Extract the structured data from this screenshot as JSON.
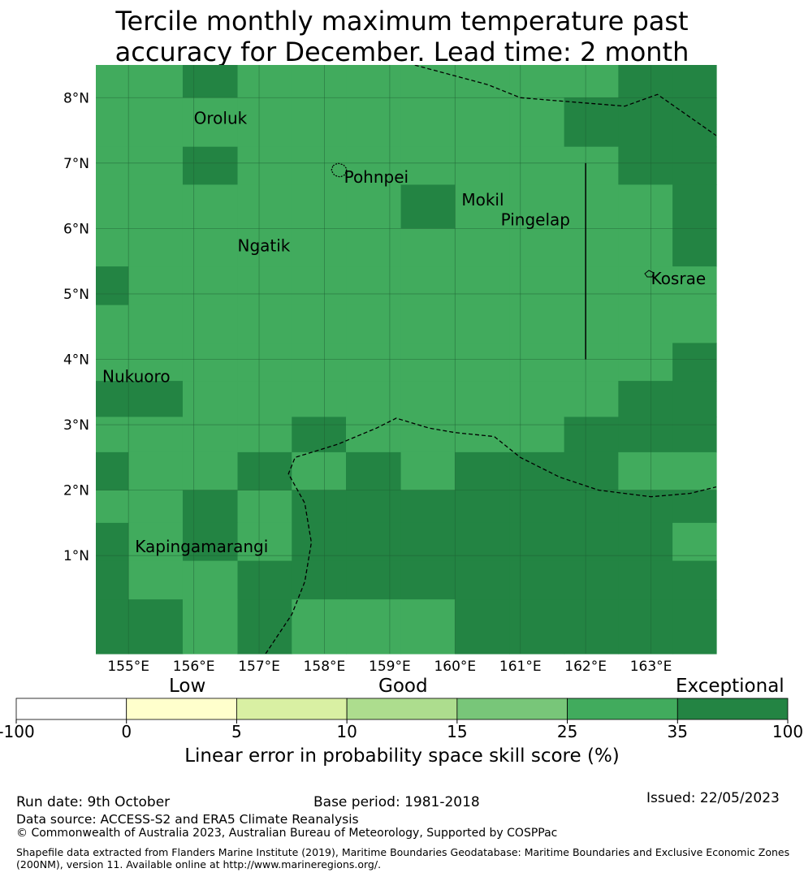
{
  "title": {
    "line1": "Tercile monthly maximum temperature past",
    "line2": "accuracy for December. Lead time: 2 month"
  },
  "map": {
    "lon_range": [
      154.5,
      164.0
    ],
    "lat_range": [
      -0.5,
      8.5
    ],
    "lon_ticks": [
      {
        "value": 155,
        "label": "155°E"
      },
      {
        "value": 156,
        "label": "156°E"
      },
      {
        "value": 157,
        "label": "157°E"
      },
      {
        "value": 158,
        "label": "158°E"
      },
      {
        "value": 159,
        "label": "159°E"
      },
      {
        "value": 160,
        "label": "160°E"
      },
      {
        "value": 161,
        "label": "161°E"
      },
      {
        "value": 162,
        "label": "162°E"
      },
      {
        "value": 163,
        "label": "163°E"
      }
    ],
    "lat_ticks": [
      {
        "value": 1,
        "label": "1°N"
      },
      {
        "value": 2,
        "label": "2°N"
      },
      {
        "value": 3,
        "label": "3°N"
      },
      {
        "value": 4,
        "label": "4°N"
      },
      {
        "value": 5,
        "label": "5°N"
      },
      {
        "value": 6,
        "label": "6°N"
      },
      {
        "value": 7,
        "label": "7°N"
      },
      {
        "value": 8,
        "label": "8°N"
      }
    ],
    "grid_lon_edges": [
      154.5,
      155.0,
      155.83,
      156.67,
      157.5,
      158.33,
      159.17,
      160.0,
      160.83,
      161.67,
      162.5,
      163.33,
      164.0
    ],
    "grid_lat_edges": [
      8.5,
      8.0,
      7.25,
      6.67,
      6.0,
      5.42,
      4.83,
      4.25,
      3.67,
      3.12,
      2.58,
      2.0,
      1.5,
      0.92,
      0.33,
      -0.5
    ],
    "grid_classes": [
      [
        5,
        5,
        6,
        5,
        5,
        5,
        5,
        5,
        5,
        5,
        6,
        6
      ],
      [
        5,
        5,
        5,
        5,
        5,
        5,
        5,
        5,
        5,
        6,
        6,
        6
      ],
      [
        5,
        5,
        6,
        5,
        5,
        5,
        5,
        5,
        5,
        5,
        6,
        6
      ],
      [
        5,
        5,
        5,
        5,
        5,
        5,
        6,
        5,
        5,
        5,
        5,
        6
      ],
      [
        5,
        5,
        5,
        5,
        5,
        5,
        5,
        5,
        5,
        5,
        5,
        6
      ],
      [
        6,
        5,
        5,
        5,
        5,
        5,
        5,
        5,
        5,
        5,
        5,
        5
      ],
      [
        5,
        5,
        5,
        5,
        5,
        5,
        5,
        5,
        5,
        5,
        5,
        5
      ],
      [
        5,
        5,
        5,
        5,
        5,
        5,
        5,
        5,
        5,
        5,
        5,
        6
      ],
      [
        6,
        6,
        5,
        5,
        5,
        5,
        5,
        5,
        5,
        5,
        6,
        6
      ],
      [
        5,
        5,
        5,
        5,
        6,
        5,
        5,
        5,
        5,
        6,
        6,
        6
      ],
      [
        6,
        5,
        5,
        6,
        5,
        6,
        5,
        6,
        6,
        6,
        5,
        5
      ],
      [
        5,
        5,
        6,
        5,
        6,
        6,
        6,
        6,
        6,
        6,
        6,
        6
      ],
      [
        6,
        5,
        6,
        5,
        6,
        6,
        6,
        6,
        6,
        6,
        6,
        5
      ],
      [
        6,
        5,
        5,
        6,
        6,
        6,
        6,
        6,
        6,
        6,
        6,
        6
      ],
      [
        6,
        6,
        5,
        6,
        5,
        5,
        5,
        6,
        6,
        6,
        6,
        6
      ]
    ],
    "places": [
      {
        "name": "Oroluk",
        "lon": 156.0,
        "lat": 7.6
      },
      {
        "name": "Pohnpei",
        "lon": 158.3,
        "lat": 6.7
      },
      {
        "name": "Mokil",
        "lon": 160.1,
        "lat": 6.35
      },
      {
        "name": "Pingelap",
        "lon": 160.7,
        "lat": 6.05
      },
      {
        "name": "Ngatik",
        "lon": 156.67,
        "lat": 5.65
      },
      {
        "name": "Kosrae",
        "lon": 163.0,
        "lat": 5.15
      },
      {
        "name": "Nukuoro",
        "lon": 154.6,
        "lat": 3.65
      },
      {
        "name": "Kapingamarangi",
        "lon": 155.1,
        "lat": 1.05
      }
    ],
    "eez_lines": [
      [
        [
          159.0,
          8.6
        ],
        [
          160.5,
          8.2
        ],
        [
          161.0,
          8.0
        ],
        [
          161.6,
          7.95
        ],
        [
          162.6,
          7.87
        ],
        [
          163.1,
          8.05
        ],
        [
          164.0,
          7.42
        ]
      ],
      [
        [
          157.1,
          -0.5
        ],
        [
          157.5,
          0.1
        ],
        [
          157.7,
          0.6
        ],
        [
          157.8,
          1.2
        ],
        [
          157.7,
          1.8
        ],
        [
          157.45,
          2.25
        ],
        [
          157.55,
          2.5
        ],
        [
          158.2,
          2.7
        ],
        [
          158.8,
          2.95
        ],
        [
          159.1,
          3.1
        ],
        [
          159.6,
          2.95
        ],
        [
          160.0,
          2.88
        ],
        [
          160.6,
          2.82
        ],
        [
          161.0,
          2.5
        ],
        [
          161.6,
          2.2
        ],
        [
          162.2,
          2.0
        ],
        [
          163.0,
          1.9
        ],
        [
          163.6,
          1.95
        ],
        [
          164.0,
          2.05
        ]
      ]
    ],
    "boundary_line": [
      [
        162.0,
        7.0
      ],
      [
        162.0,
        4.0
      ]
    ]
  },
  "colorbar": {
    "category_labels": [
      {
        "label": "Low",
        "position": 0.2
      },
      {
        "label": "Good",
        "position": 0.5
      },
      {
        "label": "Exceptional",
        "position": 0.927
      }
    ],
    "ticks": [
      "-100",
      "0",
      "5",
      "10",
      "15",
      "25",
      "35",
      "100"
    ],
    "colors": [
      "#ffffff",
      "#ffffcc",
      "#d9f0a3",
      "#addd8e",
      "#78c679",
      "#41ab5d",
      "#238443"
    ],
    "label": "Linear error in probability space skill score (%)"
  },
  "footer": {
    "run_date": "Run date: 9th October",
    "base_period": "Base period: 1981-2018",
    "issued": "Issued: 22/05/2023",
    "data_source": "Data source: ACCESS-S2 and ERA5 Climate Reanalysis",
    "copyright": "© Commonwealth of Australia 2023, Australian Bureau of Meteorology, Supported by COSPPac",
    "shapefile_line1": "Shapefile data extracted from Flanders Marine Institute (2019), Maritime Boundaries Geodatabase: Maritime Boundaries and Exclusive Economic Zones",
    "shapefile_line2": "(200NM), version 11. Available online at http://www.marineregions.org/."
  }
}
